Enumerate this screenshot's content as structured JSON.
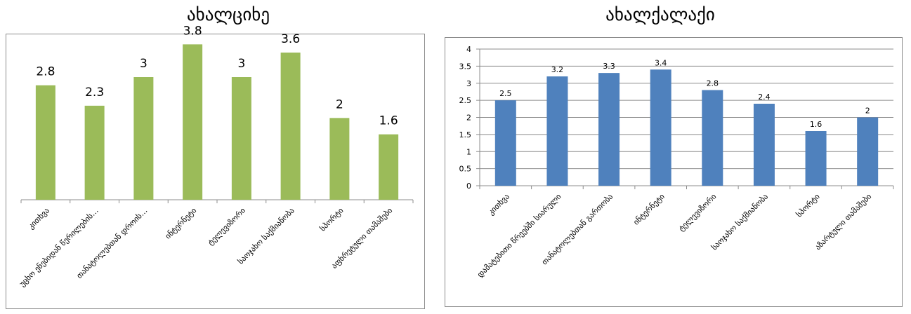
{
  "chart_data": [
    {
      "type": "bar",
      "title": "ახალციხე",
      "categories": [
        "კითხვა",
        "უცხო ენებიდან წერილების…",
        "თანატოლებთან დროის…",
        "ინტერნეტი",
        "ტელევიზორი",
        "საოჯახო საქმიანობა",
        "სპორტი",
        "აფხრეტული თამაშები"
      ],
      "values": [
        2.8,
        2.3,
        3,
        3.8,
        3,
        3.6,
        2,
        1.6
      ],
      "value_labels": [
        "2.8",
        "2.3",
        "3",
        "3.8",
        "3",
        "3.6",
        "2",
        "1.6"
      ],
      "ylim": [
        0,
        4.2
      ],
      "show_y_axis": false,
      "grid": false,
      "bar_color": "#9bbb59"
    },
    {
      "type": "bar",
      "title": "ახალქალაქი",
      "categories": [
        "კითხვა",
        "დამატებითი წრეებში სიარული",
        "თანატოლებთან გართობა",
        "ინტერნეტი",
        "ტელევიზორი",
        "საოჯახო საქმიანობა",
        "სპორტი",
        "აზარტული თამაშები"
      ],
      "values": [
        2.5,
        3.2,
        3.3,
        3.4,
        2.8,
        2.4,
        1.6,
        2
      ],
      "value_labels": [
        "2.5",
        "3.2",
        "3.3",
        "3.4",
        "2.8",
        "2.4",
        "1.6",
        "2"
      ],
      "yticks": [
        "0",
        "0.5",
        "1",
        "1.5",
        "2",
        "2.5",
        "3",
        "3.5",
        "4"
      ],
      "ylim": [
        0,
        4
      ],
      "show_y_axis": true,
      "grid": true,
      "bar_color": "#4f81bd"
    }
  ]
}
